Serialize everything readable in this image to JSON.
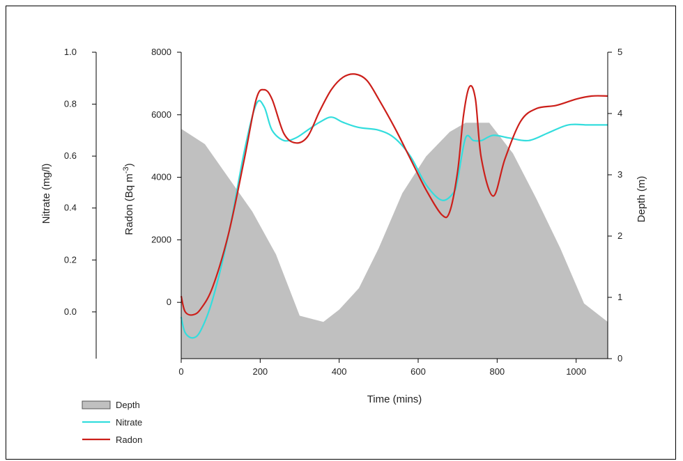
{
  "chart_data": {
    "type": "line",
    "title": "",
    "xlabel": "Time (mins)",
    "xlim": [
      0,
      1080
    ],
    "xticks": [
      0,
      200,
      400,
      600,
      800,
      1000
    ],
    "axes": {
      "nitrate": {
        "label": "Nitrate (mg/l)",
        "ylim": [
          -0.18,
          1.0
        ],
        "ticks": [
          0.0,
          0.2,
          0.4,
          0.6,
          0.8,
          1.0
        ],
        "tick_labels": [
          "0.0",
          "0.2",
          "0.4",
          "0.6",
          "0.8",
          "1.0"
        ]
      },
      "radon": {
        "label": "Radon (Bq m",
        "label_sup": "-3",
        "label_end": ")",
        "ylim": [
          -1800,
          8000
        ],
        "ticks": [
          0,
          2000,
          4000,
          6000,
          8000
        ],
        "tick_labels": [
          "0",
          "2000",
          "4000",
          "6000",
          "8000"
        ]
      },
      "depth": {
        "label": "Depth (m)",
        "ylim": [
          0,
          5
        ],
        "ticks": [
          0,
          1,
          2,
          3,
          4,
          5
        ],
        "tick_labels": [
          "0",
          "1",
          "2",
          "3",
          "4",
          "5"
        ]
      }
    },
    "grid": false,
    "legend_position": "bottom-left",
    "series": [
      {
        "name": "Depth",
        "kind": "area",
        "axis": "depth",
        "color": "#c0c0c0",
        "x": [
          0,
          60,
          120,
          180,
          240,
          300,
          360,
          400,
          450,
          500,
          560,
          620,
          680,
          720,
          780,
          840,
          900,
          960,
          1020,
          1080
        ],
        "y": [
          3.75,
          3.5,
          2.95,
          2.4,
          1.7,
          0.7,
          0.6,
          0.8,
          1.15,
          1.8,
          2.7,
          3.3,
          3.7,
          3.85,
          3.85,
          3.35,
          2.6,
          1.8,
          0.9,
          0.6
        ]
      },
      {
        "name": "Nitrate",
        "kind": "line",
        "axis": "nitrate",
        "color": "#33dddd",
        "x": [
          0,
          10,
          30,
          50,
          80,
          120,
          160,
          190,
          210,
          230,
          260,
          290,
          320,
          350,
          380,
          410,
          450,
          500,
          540,
          580,
          620,
          660,
          690,
          700,
          720,
          740,
          760,
          790,
          830,
          880,
          930,
          980,
          1030,
          1080
        ],
        "y": [
          -0.02,
          -0.08,
          -0.1,
          -0.07,
          0.05,
          0.3,
          0.62,
          0.8,
          0.79,
          0.7,
          0.66,
          0.67,
          0.7,
          0.73,
          0.75,
          0.73,
          0.71,
          0.7,
          0.67,
          0.6,
          0.49,
          0.43,
          0.46,
          0.51,
          0.67,
          0.66,
          0.66,
          0.68,
          0.67,
          0.66,
          0.69,
          0.72,
          0.72,
          0.72
        ]
      },
      {
        "name": "Radon",
        "kind": "line",
        "axis": "radon",
        "color": "#cc1f1a",
        "x": [
          0,
          10,
          30,
          50,
          80,
          120,
          160,
          190,
          210,
          230,
          260,
          290,
          320,
          350,
          380,
          410,
          440,
          470,
          500,
          540,
          580,
          620,
          660,
          680,
          700,
          715,
          730,
          745,
          760,
          790,
          820,
          860,
          900,
          950,
          1000,
          1040,
          1080
        ],
        "y": [
          200,
          -300,
          -400,
          -200,
          500,
          2200,
          4600,
          6500,
          6800,
          6500,
          5400,
          5100,
          5300,
          6100,
          6800,
          7200,
          7300,
          7100,
          6500,
          5600,
          4600,
          3600,
          2800,
          2900,
          4200,
          6000,
          6900,
          6500,
          4600,
          3400,
          4600,
          5800,
          6200,
          6300,
          6500,
          6600,
          6600
        ]
      }
    ]
  }
}
